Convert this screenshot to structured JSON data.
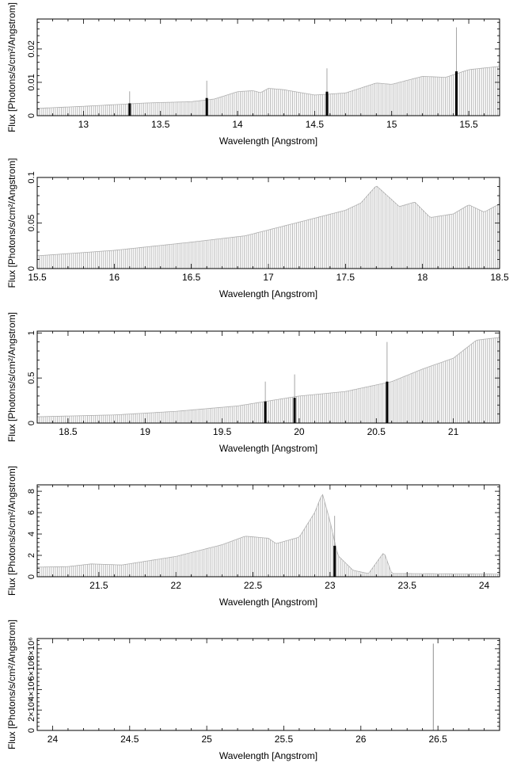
{
  "figure": {
    "ylabel": "Flux [Photons/s/cm²/Angstrom]",
    "xlabel": "Wavelength [Angstrom]"
  },
  "chart_data": [
    {
      "type": "bar",
      "xlabel": "Wavelength [Angstrom]",
      "ylabel": "Flux [Photons/s/cm²/Angstrom]",
      "xlim": [
        12.7,
        15.7
      ],
      "ylim": [
        0,
        0.029
      ],
      "xticks": [
        "13",
        "13.5",
        "14",
        "14.5",
        "15",
        "15.5"
      ],
      "xtick_values": [
        13,
        13.5,
        14,
        14.5,
        15,
        15.5
      ],
      "yticks": [
        "0",
        "0.01",
        "0.02"
      ],
      "ytick_values": [
        0,
        0.01,
        0.02
      ],
      "continuum": [
        [
          12.7,
          0.0022
        ],
        [
          13.0,
          0.0028
        ],
        [
          13.4,
          0.0038
        ],
        [
          13.7,
          0.0042
        ],
        [
          13.85,
          0.005
        ],
        [
          14.0,
          0.0072
        ],
        [
          14.1,
          0.0075
        ],
        [
          14.15,
          0.0069
        ],
        [
          14.2,
          0.0082
        ],
        [
          14.3,
          0.0078
        ],
        [
          14.5,
          0.0062
        ],
        [
          14.7,
          0.0068
        ],
        [
          14.9,
          0.0098
        ],
        [
          15.0,
          0.0094
        ],
        [
          15.2,
          0.0118
        ],
        [
          15.35,
          0.0115
        ],
        [
          15.5,
          0.0138
        ],
        [
          15.7,
          0.0148
        ]
      ],
      "lines": [
        {
          "x": 13.3,
          "y": 0.0037,
          "upper": 0.0073
        },
        {
          "x": 13.8,
          "y": 0.0053,
          "upper": 0.0105
        },
        {
          "x": 14.58,
          "y": 0.0072,
          "upper": 0.0142
        },
        {
          "x": 15.42,
          "y": 0.0133,
          "upper": 0.0265
        }
      ]
    },
    {
      "type": "bar",
      "xlabel": "Wavelength [Angstrom]",
      "ylabel": "Flux [Photons/s/cm²/Angstrom]",
      "xlim": [
        15.5,
        18.5
      ],
      "ylim": [
        0,
        0.1
      ],
      "xticks": [
        "15.5",
        "16",
        "16.5",
        "17",
        "17.5",
        "18",
        "18.5"
      ],
      "xtick_values": [
        15.5,
        16,
        16.5,
        17,
        17.5,
        18,
        18.5
      ],
      "yticks": [
        "0",
        "0.05",
        "0.1"
      ],
      "ytick_values": [
        0,
        0.05,
        0.1
      ],
      "continuum": [
        [
          15.5,
          0.014
        ],
        [
          16.0,
          0.02
        ],
        [
          16.5,
          0.029
        ],
        [
          16.85,
          0.036
        ],
        [
          17.2,
          0.051
        ],
        [
          17.5,
          0.064
        ],
        [
          17.6,
          0.072
        ],
        [
          17.7,
          0.091
        ],
        [
          17.85,
          0.068
        ],
        [
          17.95,
          0.073
        ],
        [
          18.05,
          0.056
        ],
        [
          18.2,
          0.06
        ],
        [
          18.3,
          0.07
        ],
        [
          18.4,
          0.062
        ],
        [
          18.5,
          0.071
        ]
      ],
      "lines": []
    },
    {
      "type": "bar",
      "xlabel": "Wavelength [Angstrom]",
      "ylabel": "Flux [Photons/s/cm²/Angstrom]",
      "xlim": [
        18.3,
        21.3
      ],
      "ylim": [
        0,
        1.02
      ],
      "xticks": [
        "18.5",
        "19",
        "19.5",
        "20",
        "20.5",
        "21"
      ],
      "xtick_values": [
        18.5,
        19,
        19.5,
        20,
        20.5,
        21
      ],
      "yticks": [
        "0",
        "0.5",
        "1"
      ],
      "ytick_values": [
        0,
        0.5,
        1
      ],
      "continuum": [
        [
          18.3,
          0.07
        ],
        [
          18.8,
          0.09
        ],
        [
          19.2,
          0.13
        ],
        [
          19.6,
          0.19
        ],
        [
          20.0,
          0.3
        ],
        [
          20.3,
          0.35
        ],
        [
          20.6,
          0.46
        ],
        [
          20.8,
          0.6
        ],
        [
          21.0,
          0.72
        ],
        [
          21.15,
          0.92
        ],
        [
          21.3,
          0.95
        ]
      ],
      "lines": [
        {
          "x": 19.78,
          "y": 0.24,
          "upper": 0.46
        },
        {
          "x": 19.97,
          "y": 0.28,
          "upper": 0.54
        },
        {
          "x": 20.57,
          "y": 0.46,
          "upper": 0.9
        }
      ]
    },
    {
      "type": "bar",
      "xlabel": "Wavelength [Angstrom]",
      "ylabel": "Flux [Photons/s/cm²/Angstrom]",
      "xlim": [
        21.1,
        24.1
      ],
      "ylim": [
        0,
        8.6
      ],
      "xticks": [
        "21.5",
        "22",
        "22.5",
        "23",
        "23.5",
        "24"
      ],
      "xtick_values": [
        21.5,
        22,
        22.5,
        23,
        23.5,
        24
      ],
      "yticks": [
        "0",
        "2",
        "4",
        "6",
        "8"
      ],
      "ytick_values": [
        0,
        2,
        4,
        6,
        8
      ],
      "continuum": [
        [
          21.1,
          0.9
        ],
        [
          21.3,
          0.95
        ],
        [
          21.45,
          1.2
        ],
        [
          21.65,
          1.1
        ],
        [
          22.0,
          1.9
        ],
        [
          22.3,
          3.0
        ],
        [
          22.45,
          3.8
        ],
        [
          22.6,
          3.6
        ],
        [
          22.65,
          3.1
        ],
        [
          22.8,
          3.7
        ],
        [
          22.9,
          6.0
        ],
        [
          22.95,
          7.8
        ],
        [
          23.0,
          5.2
        ],
        [
          23.05,
          2.0
        ],
        [
          23.15,
          0.6
        ],
        [
          23.25,
          0.3
        ],
        [
          23.35,
          2.3
        ],
        [
          23.4,
          0.3
        ],
        [
          24.1,
          0.25
        ]
      ],
      "lines": [
        {
          "x": 23.03,
          "y": 2.9,
          "upper": 5.7
        }
      ]
    },
    {
      "type": "bar",
      "xlabel": "Wavelength [Angstrom]",
      "ylabel": "Flux [Photons/s/cm²/Angstrom]",
      "xlim": [
        23.9,
        26.9
      ],
      "ylim": [
        0,
        9000000
      ],
      "xticks": [
        "24",
        "24.5",
        "25",
        "25.5",
        "26",
        "26.5"
      ],
      "xtick_values": [
        24,
        24.5,
        25,
        25.5,
        26,
        26.5
      ],
      "yticks": [
        "0",
        "2×10⁶",
        "4×10⁶",
        "6×10⁶",
        "8×10⁶"
      ],
      "ytick_values": [
        0,
        2000000,
        4000000,
        6000000,
        8000000
      ],
      "continuum": [
        [
          23.9,
          0
        ],
        [
          26.9,
          0
        ]
      ],
      "spikes": [
        {
          "x": 26.47,
          "y": 8500000
        }
      ],
      "lines": []
    }
  ]
}
